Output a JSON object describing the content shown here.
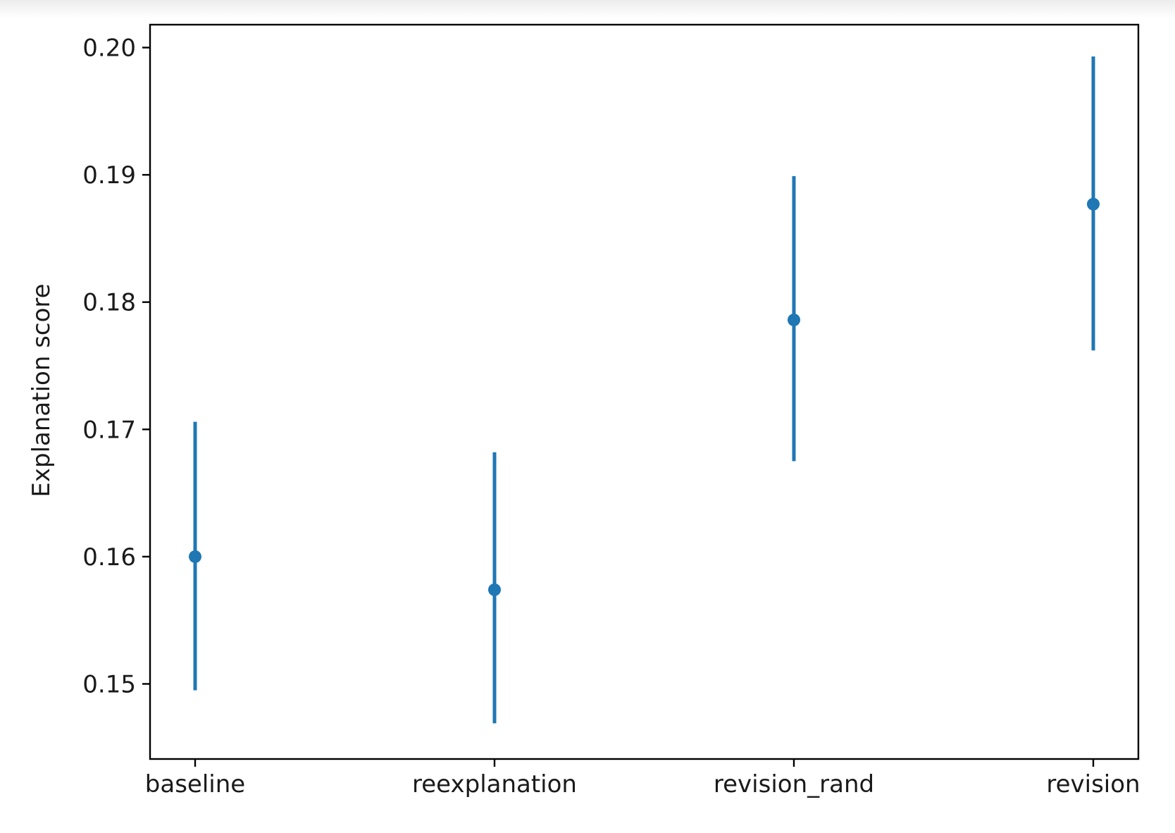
{
  "chart_data": {
    "type": "scatter",
    "title": "",
    "xlabel": "",
    "ylabel": "Explanation score",
    "categories": [
      "baseline",
      "reexplanation",
      "revision_rand",
      "revision"
    ],
    "series": [
      {
        "values": [
          0.16,
          0.1574,
          0.1786,
          0.1877
        ],
        "error_low": [
          0.1495,
          0.1469,
          0.1675,
          0.1762
        ],
        "error_high": [
          0.1706,
          0.1682,
          0.1899,
          0.1993
        ]
      }
    ],
    "ylim": [
      0.1441,
      0.2018
    ],
    "yticks": [
      0.15,
      0.16,
      0.17,
      0.18,
      0.19,
      0.2
    ],
    "ytick_labels": [
      "0.15",
      "0.16",
      "0.17",
      "0.18",
      "0.19",
      "0.20"
    ],
    "grid": false,
    "legend": "none",
    "colors": {
      "series": "#1f77b4",
      "axes": "#000000",
      "text": "#1a1a1a"
    }
  }
}
